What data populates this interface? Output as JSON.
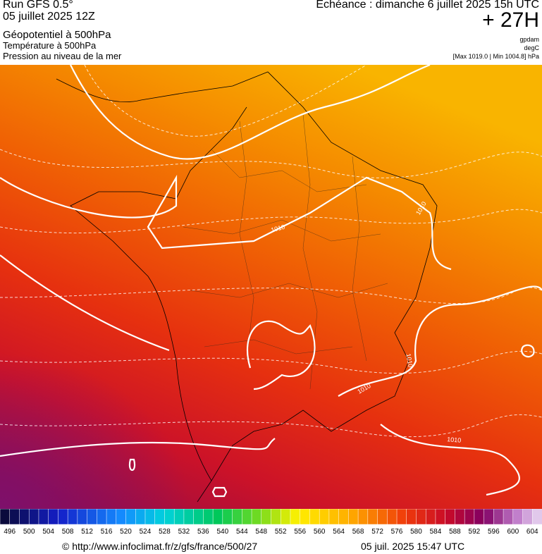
{
  "header": {
    "run": "Run GFS 0.5°",
    "date": "05 juillet 2025 12Z",
    "field1": "Géopotentiel à 500hPa",
    "field2": "Température à 500hPa",
    "field3": "Pression au niveau de la mer",
    "echeance": "Echéance : dimanche 6 juillet 2025 15h UTC",
    "lead": "+ 27H",
    "unit1": "gpdam",
    "unit2": "degC",
    "range": "[Max 1019.0 | Min 1004.8] hPa"
  },
  "map": {
    "isobar_labels": [
      "1010",
      "1010",
      "1010",
      "1010",
      "1010"
    ]
  },
  "legend": {
    "labels": [
      496,
      500,
      504,
      508,
      512,
      516,
      520,
      524,
      528,
      532,
      536,
      540,
      544,
      548,
      552,
      556,
      560,
      564,
      568,
      572,
      576,
      580,
      584,
      588,
      592,
      596,
      600,
      604
    ]
  },
  "footer": {
    "url": "© http://www.infoclimat.fr/z/gfs/france/500/27",
    "timestamp": "05 juil. 2025 15:47 UTC"
  }
}
